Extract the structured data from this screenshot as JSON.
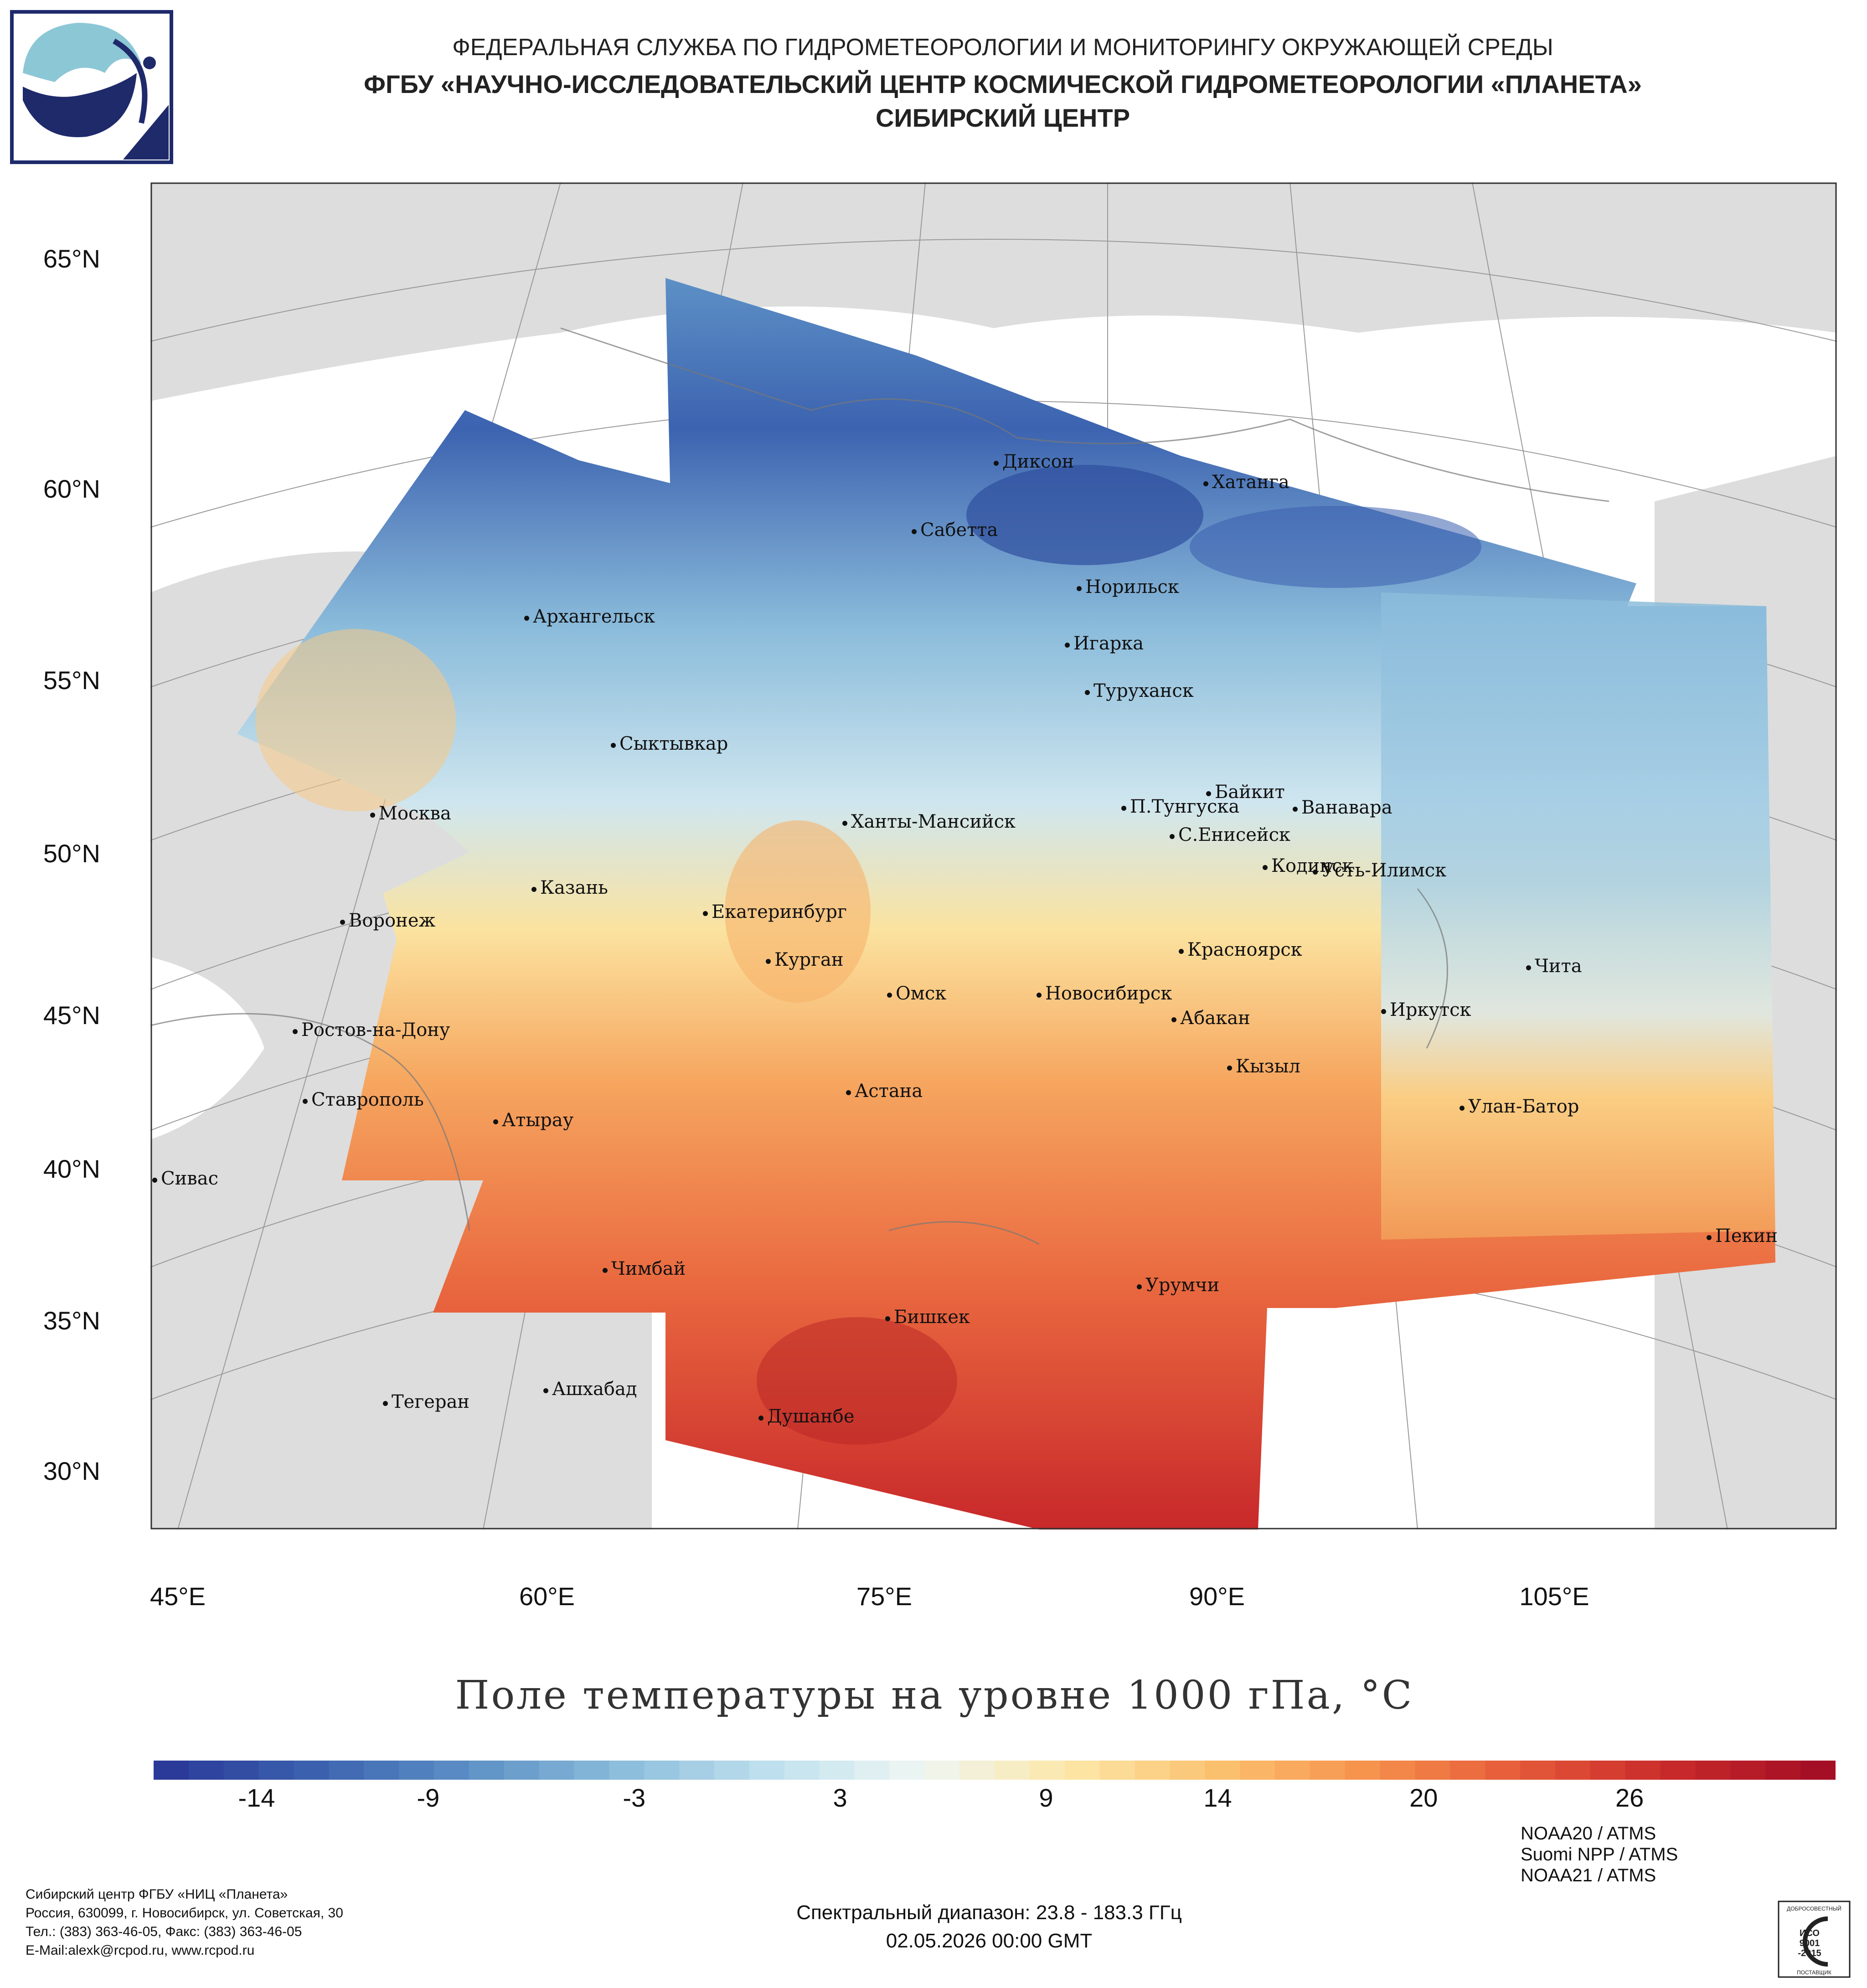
{
  "header": {
    "line1": "ФЕДЕРАЛЬНАЯ СЛУЖБА ПО ГИДРОМЕТЕОРОЛОГИИ И МОНИТОРИНГУ ОКРУЖАЮЩЕЙ СРЕДЫ",
    "line2": "ФГБУ «НАУЧНО-ИССЛЕДОВАТЕЛЬСКИЙ ЦЕНТР КОСМИЧЕСКОЙ ГИДРОМЕТЕОРОЛОГИИ «ПЛАНЕТА»",
    "line3": "СИБИРСКИЙ ЦЕНТР"
  },
  "map": {
    "lat_labels": [
      "65°N",
      "60°N",
      "55°N",
      "50°N",
      "45°N",
      "40°N",
      "35°N",
      "30°N"
    ],
    "lon_labels": [
      "45°E",
      "60°E",
      "75°E",
      "90°E",
      "105°E"
    ],
    "cities": [
      "Диксон",
      "Хатанга",
      "Сабетта",
      "Норильск",
      "Архангельск",
      "Игарка",
      "Туруханск",
      "Сыктывкар",
      "Байкит",
      "Москва",
      "Ханты-Мансийск",
      "П.Тунгуска",
      "Ванавара",
      "С.Енисейск",
      "Казань",
      "Кодинск",
      "Усть-Илимск",
      "Екатеринбург",
      "Воронеж",
      "Красноярск",
      "Курган",
      "Чита",
      "Омск",
      "Новосибирск",
      "Иркутск",
      "Абакан",
      "Ростов-на-Дону",
      "Кызыл",
      "Ставрополь",
      "Астана",
      "Улан-Батор",
      "Атырау",
      "Сивас",
      "Пекин",
      "Чимбай",
      "Урумчи",
      "Бишкек",
      "Ашхабад",
      "Тегеран",
      "Душанбе"
    ],
    "colors": {
      "land": "#dddddd",
      "water": "#ffffff",
      "grid": "#999999",
      "frame": "#333333"
    }
  },
  "title": "Поле температуры на уровне 1000 гПа, °С",
  "colorbar": {
    "min": -17,
    "max": 32,
    "ticks": [
      "-14",
      "-9",
      "-3",
      "3",
      "9",
      "14",
      "20",
      "26"
    ],
    "tick_values": [
      -14,
      -9,
      -3,
      3,
      9,
      14,
      20,
      26
    ],
    "colors": [
      "#2b3a98",
      "#3c63b0",
      "#5d90c6",
      "#8bbcdb",
      "#bfe0ee",
      "#eef6f4",
      "#fde7a8",
      "#fbc16f",
      "#f6924d",
      "#e55a39",
      "#c92a2a",
      "#a50f26"
    ]
  },
  "footer": {
    "org": [
      "Сибирский центр ФГБУ «НИЦ «Планета»",
      "Россия, 630099, г. Новосибирск, ул. Советская, 30",
      "Тел.: (383) 363-46-05, Факс: (383) 363-46-05",
      "E-Mail:alexk@rcpod.ru, www.rcpod.ru"
    ],
    "spectral": "Спектральный диапазон: 23.8 - 183.3 ГГц",
    "datetime": "02.05.2026 00:00 GMT",
    "sources": [
      "NOAA20 / ATMS",
      "Suomi NPP / ATMS",
      "NOAA21 / ATMS"
    ],
    "iso_badge": [
      "ДОБРОСОВЕСТНЫЙ",
      "ИСО",
      "9001",
      "-2015",
      "ПОСТАВЩИК"
    ]
  }
}
